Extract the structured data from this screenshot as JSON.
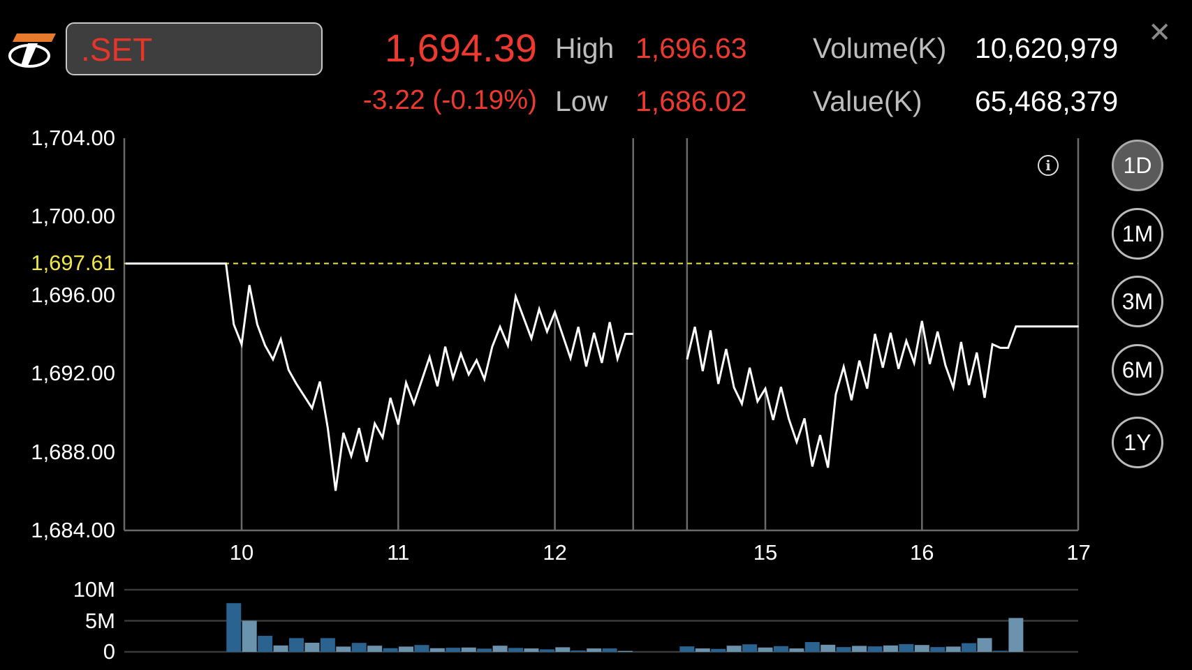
{
  "header": {
    "symbol": ".SET",
    "last_price": "1,694.39",
    "change": "-3.22 (-0.19%)",
    "high_label": "High",
    "high_value": "1,696.63",
    "low_label": "Low",
    "low_value": "1,686.02",
    "volume_label": "Volume(K)",
    "volume_value": "10,620,979",
    "value_label": "Value(K)",
    "value_value": "65,468,379",
    "close_icon": "close-icon",
    "logo_icon": "brand-logo"
  },
  "colors": {
    "negative": "#ee3a2e",
    "reference_line": "#f0e64a",
    "price_line": "#ffffff",
    "volume_dark": "#2b6390",
    "volume_light": "#6c93ad",
    "logo_orange": "#e87a2e"
  },
  "range_buttons": [
    {
      "label": "1D",
      "active": true
    },
    {
      "label": "1M",
      "active": false
    },
    {
      "label": "3M",
      "active": false
    },
    {
      "label": "6M",
      "active": false
    },
    {
      "label": "1Y",
      "active": false
    }
  ],
  "info_icon": "info-icon",
  "chart_data": [
    {
      "type": "line",
      "ylim": [
        1684,
        1704
      ],
      "y_ticks": [
        "1,704.00",
        "1,700.00",
        "1,696.00",
        "1,692.00",
        "1,688.00",
        "1,684.00"
      ],
      "y_tick_values": [
        1704,
        1700,
        1696,
        1692,
        1688,
        1684
      ],
      "reference_line": {
        "value": 1697.61,
        "label": "1,697.61",
        "style": "dashed"
      },
      "x_ticks": [
        "10",
        "11",
        "12",
        "15",
        "16",
        "17"
      ],
      "x_tick_values": [
        10,
        11,
        12,
        15,
        16,
        17
      ],
      "xlim": [
        9.25,
        17
      ],
      "session_break": [
        12.5,
        14.5
      ],
      "series": [
        {
          "points": [
            [
              9.26,
              1697.61
            ],
            [
              9.9,
              1697.61
            ],
            [
              9.95,
              1694.5
            ],
            [
              10.0,
              1693.49
            ],
            [
              10.05,
              1696.51
            ],
            [
              10.1,
              1694.5
            ],
            [
              10.15,
              1693.43
            ],
            [
              10.2,
              1692.72
            ],
            [
              10.25,
              1693.75
            ],
            [
              10.3,
              1692.18
            ],
            [
              10.35,
              1691.47
            ],
            [
              10.45,
              1690.23
            ],
            [
              10.5,
              1691.59
            ],
            [
              10.55,
              1689.22
            ],
            [
              10.6,
              1686.02
            ],
            [
              10.65,
              1688.98
            ],
            [
              10.7,
              1687.79
            ],
            [
              10.75,
              1689.22
            ],
            [
              10.8,
              1687.5
            ],
            [
              10.85,
              1689.45
            ],
            [
              10.9,
              1688.74
            ],
            [
              10.95,
              1690.76
            ],
            [
              11.0,
              1689.4
            ],
            [
              11.05,
              1691.53
            ],
            [
              11.1,
              1690.46
            ],
            [
              11.2,
              1692.84
            ],
            [
              11.25,
              1691.35
            ],
            [
              11.3,
              1693.37
            ],
            [
              11.35,
              1691.77
            ],
            [
              11.4,
              1693.01
            ],
            [
              11.45,
              1691.95
            ],
            [
              11.5,
              1692.68
            ],
            [
              11.55,
              1691.71
            ],
            [
              11.6,
              1693.37
            ],
            [
              11.65,
              1694.38
            ],
            [
              11.7,
              1693.43
            ],
            [
              11.75,
              1695.92
            ],
            [
              11.85,
              1693.79
            ],
            [
              11.9,
              1695.29
            ],
            [
              11.95,
              1694.14
            ],
            [
              12.0,
              1695.13
            ],
            [
              12.1,
              1692.78
            ],
            [
              12.15,
              1694.38
            ],
            [
              12.2,
              1692.36
            ],
            [
              12.25,
              1694.08
            ],
            [
              12.3,
              1692.54
            ],
            [
              12.35,
              1694.62
            ],
            [
              12.4,
              1692.75
            ],
            [
              12.45,
              1694.02
            ],
            [
              12.5,
              1694.02
            ]
          ]
        },
        {
          "points": [
            [
              14.5,
              1692.72
            ],
            [
              14.55,
              1694.38
            ],
            [
              14.6,
              1692.12
            ],
            [
              14.65,
              1694.2
            ],
            [
              14.7,
              1691.47
            ],
            [
              14.75,
              1693.25
            ],
            [
              14.8,
              1691.29
            ],
            [
              14.85,
              1690.46
            ],
            [
              14.9,
              1692.3
            ],
            [
              14.95,
              1690.58
            ],
            [
              15.0,
              1691.23
            ],
            [
              15.05,
              1689.63
            ],
            [
              15.1,
              1691.32
            ],
            [
              15.15,
              1689.69
            ],
            [
              15.2,
              1688.51
            ],
            [
              15.25,
              1689.71
            ],
            [
              15.3,
              1687.26
            ],
            [
              15.35,
              1688.86
            ],
            [
              15.4,
              1687.2
            ],
            [
              15.45,
              1690.94
            ],
            [
              15.5,
              1692.34
            ],
            [
              15.55,
              1690.64
            ],
            [
              15.6,
              1692.66
            ],
            [
              15.65,
              1691.23
            ],
            [
              15.7,
              1694.02
            ],
            [
              15.75,
              1692.3
            ],
            [
              15.8,
              1694.08
            ],
            [
              15.85,
              1692.24
            ],
            [
              15.9,
              1693.67
            ],
            [
              15.95,
              1692.54
            ],
            [
              16.0,
              1694.68
            ],
            [
              16.05,
              1692.48
            ],
            [
              16.1,
              1694.14
            ],
            [
              16.15,
              1692.42
            ],
            [
              16.2,
              1691.29
            ],
            [
              16.25,
              1693.61
            ],
            [
              16.3,
              1691.41
            ],
            [
              16.35,
              1693.07
            ],
            [
              16.4,
              1690.76
            ],
            [
              16.45,
              1693.49
            ],
            [
              16.5,
              1693.31
            ],
            [
              16.55,
              1693.31
            ],
            [
              16.6,
              1694.4
            ],
            [
              17.0,
              1694.4
            ]
          ]
        }
      ]
    },
    {
      "type": "bar",
      "ylim": [
        0,
        10
      ],
      "y_ticks": [
        "10M",
        "5M",
        "0"
      ],
      "y_tick_values": [
        10,
        5,
        0
      ],
      "unit": "M",
      "sessions": [
        {
          "start": 9.95,
          "step": 0.1,
          "values": [
            7.84,
            5.0,
            2.58,
            1.03,
            2.21,
            1.47,
            2.21,
            0.85,
            1.44,
            0.99,
            0.59,
            0.85,
            1.1,
            0.59,
            0.66,
            0.7,
            0.52,
            0.99,
            0.63,
            0.55,
            0.4,
            0.74,
            0.22,
            0.55,
            0.55,
            0.15
          ]
        },
        {
          "start": 14.5,
          "step": 0.1,
          "values": [
            0.88,
            0.55,
            0.48,
            0.99,
            1.21,
            0.7,
            0.92,
            0.55,
            1.58,
            1.14,
            0.77,
            0.96,
            0.88,
            1.03,
            1.25,
            1.1,
            0.77,
            0.85,
            1.4,
            2.21,
            0.18,
            5.45
          ]
        }
      ]
    }
  ]
}
